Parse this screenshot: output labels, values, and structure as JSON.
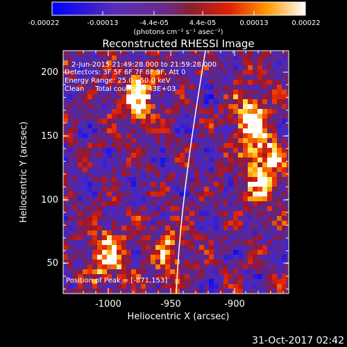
{
  "colorbar": {
    "ticks": [
      "-0.00022",
      "-0.00013",
      "-4.4e-05",
      "4.4e-05",
      "0.00013",
      "0.00022"
    ],
    "units": "(photons cm⁻² s⁻¹ asec⁻²)"
  },
  "chart_data": {
    "type": "heatmap",
    "title": "Reconstructed RHESSI Image",
    "xlabel": "Heliocentric X (arcsec)",
    "ylabel": "Heliocentric Y (arcsec)",
    "xlim": [
      -1043,
      -948
    ],
    "ylim": [
      25,
      215
    ],
    "x_ticks": [
      "-1000",
      "-950",
      "-900"
    ],
    "y_ticks": [
      "50",
      "100",
      "150",
      "200"
    ],
    "x_tick_values": [
      -1000,
      -950,
      -900
    ],
    "y_tick_values": [
      50,
      100,
      150,
      200
    ],
    "zlim": [
      -0.00022,
      0.00022
    ],
    "colormap": "blue-purple-red-yellow-white",
    "annotations": {
      "time": "2-Jun-2015 21:49:28.000 to 21:59:28.000",
      "detectors": "Detectors: 3F 5F 6F 7F 8F 9F, Att 0",
      "energy": "Energy Range: 25.0 - 50.0 keV",
      "clean": "Clean     Total counts: 9.43E+03",
      "peak": "Position of Peak = [-871,153]"
    },
    "bright_regions": [
      {
        "x": -985,
        "y": 180,
        "level": 0.9
      },
      {
        "x": -890,
        "y": 160,
        "level": 1.0
      },
      {
        "x": -880,
        "y": 120,
        "level": 0.85
      },
      {
        "x": -1010,
        "y": 55,
        "level": 0.8
      },
      {
        "x": -960,
        "y": 60,
        "level": 0.6
      }
    ]
  },
  "footer": {
    "timestamp": "31-Oct-2017 02:42"
  }
}
